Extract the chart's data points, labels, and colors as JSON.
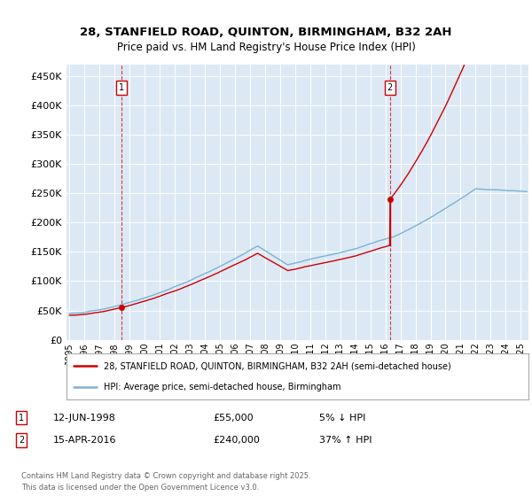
{
  "title_line1": "28, STANFIELD ROAD, QUINTON, BIRMINGHAM, B32 2AH",
  "title_line2": "Price paid vs. HM Land Registry's House Price Index (HPI)",
  "ylabel_ticks": [
    "£0",
    "£50K",
    "£100K",
    "£150K",
    "£200K",
    "£250K",
    "£300K",
    "£350K",
    "£400K",
    "£450K"
  ],
  "ytick_vals": [
    0,
    50000,
    100000,
    150000,
    200000,
    250000,
    300000,
    350000,
    400000,
    450000
  ],
  "ylim": [
    0,
    470000
  ],
  "xlim_start": 1994.8,
  "xlim_end": 2025.5,
  "bg_color": "#dce9f5",
  "line_color_house": "#cc0000",
  "line_color_hpi": "#7ab3d4",
  "grid_color": "#ffffff",
  "sale1_x": 1998.44,
  "sale1_y": 55000,
  "sale2_x": 2016.29,
  "sale2_y": 240000,
  "legend_house": "28, STANFIELD ROAD, QUINTON, BIRMINGHAM, B32 2AH (semi-detached house)",
  "legend_hpi": "HPI: Average price, semi-detached house, Birmingham",
  "note1_date": "12-JUN-1998",
  "note1_price": "£55,000",
  "note1_hpi": "5% ↓ HPI",
  "note2_date": "15-APR-2016",
  "note2_price": "£240,000",
  "note2_hpi": "37% ↑ HPI",
  "footer": "Contains HM Land Registry data © Crown copyright and database right 2025.\nThis data is licensed under the Open Government Licence v3.0.",
  "xtick_years": [
    1995,
    1996,
    1997,
    1998,
    1999,
    2000,
    2001,
    2002,
    2003,
    2004,
    2005,
    2006,
    2007,
    2008,
    2009,
    2010,
    2011,
    2012,
    2013,
    2014,
    2015,
    2016,
    2017,
    2018,
    2019,
    2020,
    2021,
    2022,
    2023,
    2024,
    2025
  ]
}
